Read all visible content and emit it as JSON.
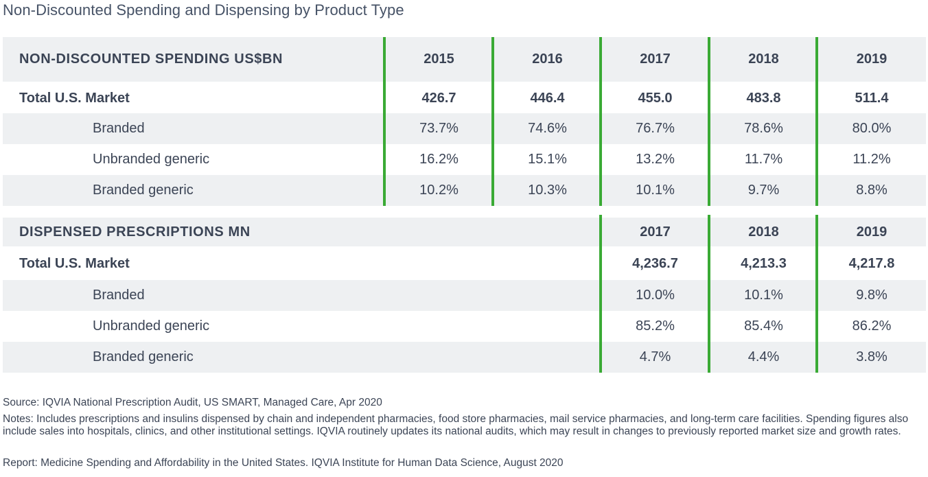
{
  "title": "Non-Discounted Spending and Dispensing by Product Type",
  "colors": {
    "accent_line": "#3aaa35",
    "row_shade": "#eef0f2",
    "text": "#3b4455"
  },
  "chart_data": [
    {
      "type": "table",
      "header": "NON-DISCOUNTED SPENDING US$BN",
      "years": [
        "2015",
        "2016",
        "2017",
        "2018",
        "2019"
      ],
      "rows": [
        {
          "label": "Total U.S. Market",
          "values": [
            "426.7",
            "446.4",
            "455.0",
            "483.8",
            "511.4"
          ]
        },
        {
          "label": "Branded",
          "values": [
            "73.7%",
            "74.6%",
            "76.7%",
            "78.6%",
            "80.0%"
          ]
        },
        {
          "label": "Unbranded generic",
          "values": [
            "16.2%",
            "15.1%",
            "13.2%",
            "11.7%",
            "11.2%"
          ]
        },
        {
          "label": "Branded generic",
          "values": [
            "10.2%",
            "10.3%",
            "10.1%",
            "9.7%",
            "8.8%"
          ]
        }
      ]
    },
    {
      "type": "table",
      "header": "DISPENSED PRESCRIPTIONS MN",
      "years": [
        "2017",
        "2018",
        "2019"
      ],
      "rows": [
        {
          "label": "Total U.S. Market",
          "values": [
            "4,236.7",
            "4,213.3",
            "4,217.8"
          ]
        },
        {
          "label": "Branded",
          "values": [
            "10.0%",
            "10.1%",
            "9.8%"
          ]
        },
        {
          "label": "Unbranded generic",
          "values": [
            "85.2%",
            "85.4%",
            "86.2%"
          ]
        },
        {
          "label": "Branded generic",
          "values": [
            "4.7%",
            "4.4%",
            "3.8%"
          ]
        }
      ]
    }
  ],
  "footer": {
    "source": "Source: IQVIA National Prescription Audit, US SMART, Managed Care, Apr 2020",
    "notes": "Notes: Includes prescriptions and insulins dispensed by chain and independent pharmacies, food store pharmacies, mail service pharmacies, and long-term care facilities. Spending figures also include sales into hospitals, clinics, and other institutional settings. IQVIA routinely updates its national audits, which may result in changes to previously reported market size and growth rates.",
    "report": "Report: Medicine Spending and Affordability in the United States. IQVIA Institute for Human Data Science, August 2020"
  }
}
